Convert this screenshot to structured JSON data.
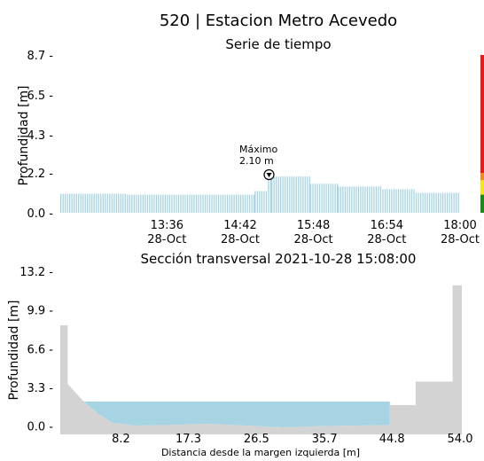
{
  "title": "520 | Estacion Metro Acevedo",
  "colors": {
    "water": "#a6d4e3",
    "ground": "#d3d3d3",
    "level_red": "#e8191a",
    "level_orange": "#f08b1d",
    "level_yellow": "#f5e61b",
    "level_green": "#1b8a1b"
  },
  "chart_data": [
    {
      "type": "bar",
      "title": "Serie de tiempo",
      "ylabel": "Profundidad [m]",
      "ylim": [
        0,
        8.7
      ],
      "yticks": [
        "0.0",
        "2.2",
        "4.3",
        "6.5",
        "8.7"
      ],
      "xlim_minutes": [
        720,
        1080
      ],
      "xticks": [
        {
          "time": "13:36",
          "date": "28-Oct"
        },
        {
          "time": "14:42",
          "date": "28-Oct"
        },
        {
          "time": "15:48",
          "date": "28-Oct"
        },
        {
          "time": "16:54",
          "date": "28-Oct"
        },
        {
          "time": "18:00",
          "date": "28-Oct"
        }
      ],
      "annotation": {
        "line1": "Máximo",
        "line2": "2.10 m",
        "value": 2.1,
        "time": "15:08"
      },
      "series_segments": [
        {
          "from": "12:00",
          "to": "13:00",
          "value": 1.05
        },
        {
          "from": "13:00",
          "to": "14:00",
          "value": 1.0
        },
        {
          "from": "14:00",
          "to": "14:55",
          "value": 1.0
        },
        {
          "from": "14:55",
          "to": "15:07",
          "value": 1.2
        },
        {
          "from": "15:07",
          "to": "15:10",
          "value": 2.1
        },
        {
          "from": "15:10",
          "to": "15:45",
          "value": 2.0
        },
        {
          "from": "15:45",
          "to": "16:10",
          "value": 1.6
        },
        {
          "from": "16:10",
          "to": "16:50",
          "value": 1.45
        },
        {
          "from": "16:50",
          "to": "17:20",
          "value": 1.3
        },
        {
          "from": "17:20",
          "to": "18:00",
          "value": 1.1
        }
      ],
      "level_bar": [
        "red",
        "orange",
        "yellow",
        "green"
      ]
    },
    {
      "type": "area",
      "title": "Sección transversal 2021-10-28 15:08:00",
      "ylabel": "Profundidad [m]",
      "xlabel": "Distancia desde la margen izquierda [m]",
      "xlim": [
        0,
        54.0
      ],
      "ylim": [
        -0.4,
        13.2
      ],
      "xticks": [
        "8.2",
        "17.3",
        "26.5",
        "35.7",
        "44.8",
        "54.0"
      ],
      "yticks": [
        "0.0",
        "3.3",
        "6.6",
        "9.9",
        "13.2"
      ],
      "water_level": 2.1,
      "ground_profile": {
        "x": [
          0,
          1.0,
          1.0,
          3.0,
          5.0,
          7.0,
          10.0,
          15.0,
          20.0,
          25.0,
          30.0,
          35.0,
          40.0,
          44.5,
          44.5,
          48.0,
          48.0,
          53.0,
          53.0,
          55.0
        ],
        "y": [
          8.6,
          8.6,
          3.6,
          2.2,
          1.1,
          0.3,
          0.05,
          0.1,
          0.2,
          0.05,
          -0.1,
          0.0,
          0.05,
          0.1,
          1.8,
          1.8,
          3.8,
          3.8,
          12.0,
          12.0
        ]
      }
    }
  ]
}
